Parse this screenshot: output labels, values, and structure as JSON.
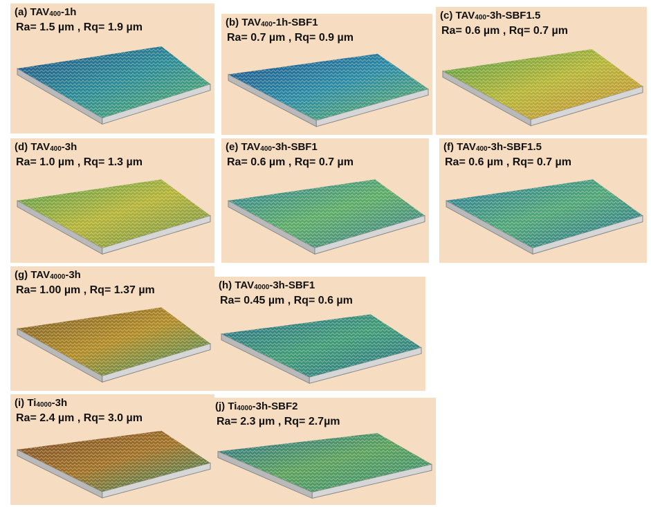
{
  "panels": [
    {
      "label": "(a) TAV",
      "sub": "400",
      "suffix": "-1h",
      "roughness": "Ra= 1.5 µm , Rq= 1.9 µm"
    },
    {
      "label": "(b) TAV",
      "sub": "400",
      "suffix": "-1h-SBF1",
      "roughness": "Ra= 0.7 µm , Rq= 0.9 µm"
    },
    {
      "label": "(c) TAV",
      "sub": "400",
      "suffix": "-3h-SBF1.5",
      "roughness": "Ra= 0.6 µm , Rq= 0.7 µm"
    },
    {
      "label": "(d) TAV",
      "sub": "400",
      "suffix": "-3h",
      "roughness": "Ra= 1.0 µm , Rq= 1.3 µm"
    },
    {
      "label": "(e) TAV",
      "sub": "400",
      "suffix": "-3h-SBF1",
      "roughness": "Ra= 0.6 µm , Rq= 0.7 µm"
    },
    {
      "label": "(f) TAV",
      "sub": "400",
      "suffix": "-3h-SBF1.5",
      "roughness": "Ra= 0.6 µm , Rq= 0.7 µm"
    },
    {
      "label": "(g) TAV",
      "sub": "4000",
      "suffix": "-3h",
      "roughness": "Ra= 1.00 µm , Rq= 1.37 µm"
    },
    {
      "label": "(h) TAV",
      "sub": "4000",
      "suffix": "-3h-SBF1",
      "roughness": "Ra= 0.45 µm , Rq= 0.6 µm"
    },
    {
      "label": "(i) Ti",
      "sub": "4000",
      "suffix": "-3h",
      "roughness": "Ra= 2.4 µm , Rq= 3.0 µm"
    },
    {
      "label": "(j) Ti",
      "sub": "4000",
      "suffix": "-3h-SBF2",
      "roughness": "Ra= 2.3 µm , Rq= 2.7µm"
    }
  ]
}
